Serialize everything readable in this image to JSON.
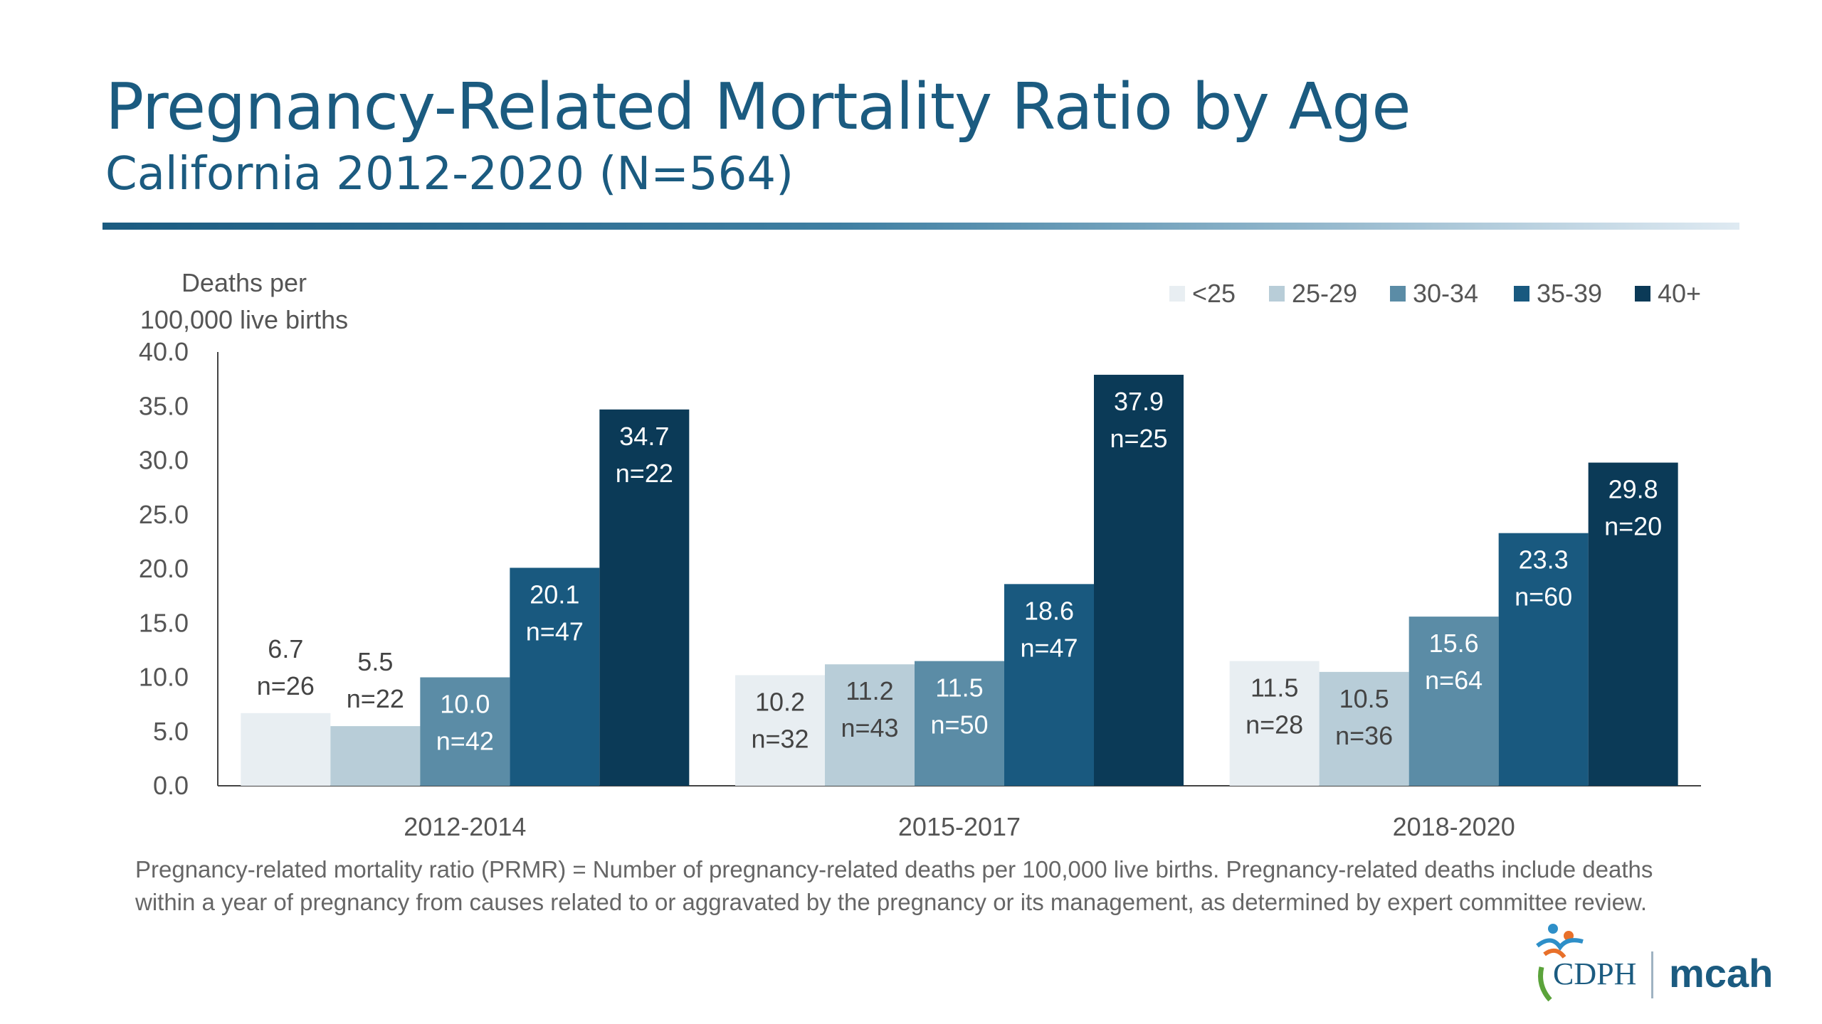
{
  "slide": {
    "title": "Pregnancy-Related Mortality Ratio by Age",
    "subtitle": "California 2012-2020 (N=564)",
    "footnote": "Pregnancy-related mortality ratio (PRMR) = Number of pregnancy-related deaths per 100,000 live births. Pregnancy-related deaths include deaths within a year of pregnancy from causes related to or aggravated by the pregnancy or its management, as determined by expert committee review.",
    "logo": {
      "cdph": "CDPH",
      "mcah": "mcah"
    }
  },
  "chart_data": {
    "type": "bar",
    "title": "Pregnancy-Related Mortality Ratio by Age",
    "ylabel_lines": [
      "Deaths per",
      "100,000 live births"
    ],
    "ylim": [
      0,
      40
    ],
    "yticks": [
      "0.0",
      "5.0",
      "10.0",
      "15.0",
      "20.0",
      "25.0",
      "30.0",
      "35.0",
      "40.0"
    ],
    "categories": [
      "2012-2014",
      "2015-2017",
      "2018-2020"
    ],
    "legend_position": "top-right",
    "grid": false,
    "series": [
      {
        "name": "<25",
        "color": "#e8eef2",
        "values": [
          6.7,
          10.2,
          11.5
        ],
        "labels": [
          "6.7",
          "10.2",
          "11.5"
        ],
        "n": [
          "n=26",
          "n=32",
          "n=28"
        ]
      },
      {
        "name": "25-29",
        "color": "#b8cdd8",
        "values": [
          5.5,
          11.2,
          10.5
        ],
        "labels": [
          "5.5",
          "11.2",
          "10.5"
        ],
        "n": [
          "n=22",
          "n=43",
          "n=36"
        ]
      },
      {
        "name": "30-34",
        "color": "#5b8ca6",
        "values": [
          10.0,
          11.5,
          15.6
        ],
        "labels": [
          "10.0",
          "11.5",
          "15.6"
        ],
        "n": [
          "n=42",
          "n=50",
          "n=64"
        ]
      },
      {
        "name": "35-39",
        "color": "#19597f",
        "values": [
          20.1,
          18.6,
          23.3
        ],
        "labels": [
          "20.1",
          "18.6",
          "23.3"
        ],
        "n": [
          "n=47",
          "n=47",
          "n=60"
        ]
      },
      {
        "name": "40+",
        "color": "#0b3a57",
        "values": [
          34.7,
          37.9,
          29.8
        ],
        "labels": [
          "34.7",
          "37.9",
          "29.8"
        ],
        "n": [
          "n=22",
          "n=25",
          "n=20"
        ]
      }
    ]
  }
}
